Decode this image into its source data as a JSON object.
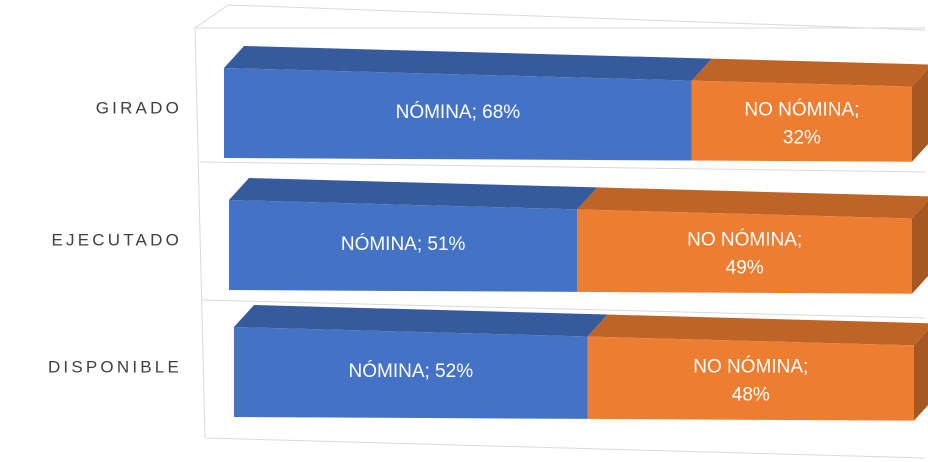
{
  "chart_data": {
    "type": "bar",
    "orientation": "horizontal",
    "stacked": "100%",
    "style": "3d",
    "categories": [
      "GIRADO",
      "EJECUTADO",
      "DISPONIBLE"
    ],
    "series": [
      {
        "name": "NÓMINA",
        "values": [
          68,
          51,
          52
        ],
        "color": "#4472C4",
        "labels": [
          "NÓMINA; 68%",
          "NÓMINA; 51%",
          "NÓMINA; 52%"
        ]
      },
      {
        "name": "NO NÓMINA",
        "values": [
          32,
          49,
          48
        ],
        "color": "#ED7D31",
        "labels": [
          "NO NÓMINA;|32%",
          "NO NÓMINA;|49%",
          "NO NÓMINA;|48%"
        ]
      }
    ],
    "xlim": [
      0,
      100
    ],
    "unit": "%",
    "grid": true,
    "legend": "none"
  }
}
